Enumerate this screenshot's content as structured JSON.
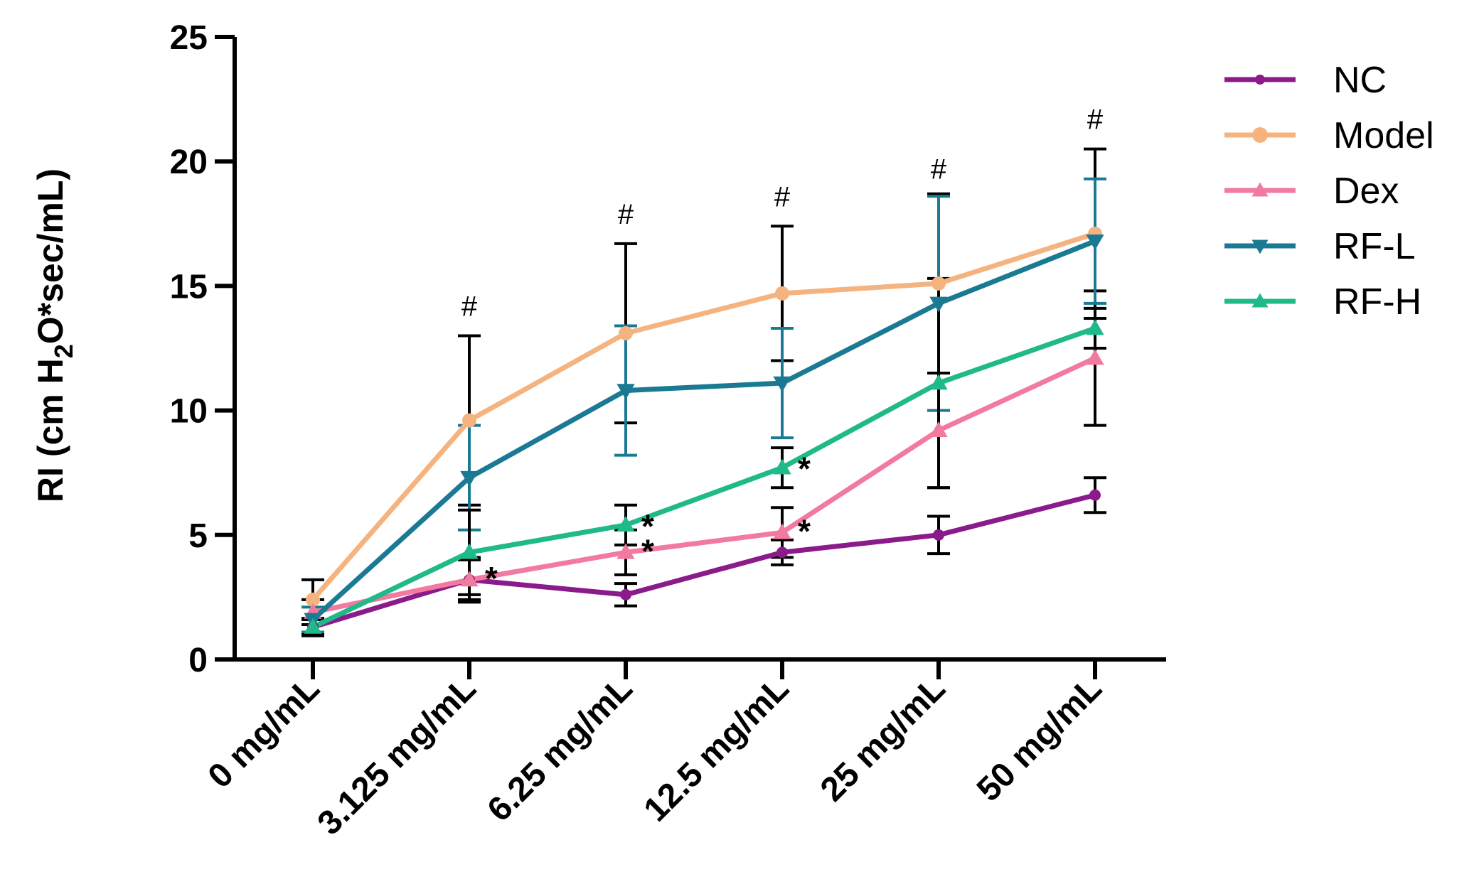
{
  "chart_data": {
    "type": "line",
    "title": "",
    "xlabel": "",
    "ylabel": {
      "prefix": "RI (cm H",
      "sub": "2",
      "suffix": "O*sec/mL)"
    },
    "ylim": [
      0,
      25
    ],
    "yticks": [
      0,
      5,
      10,
      15,
      20,
      25
    ],
    "categories": [
      "0 mg/mL",
      "3.125 mg/mL",
      "6.25 mg/mL",
      "12.5 mg/mL",
      "25 mg/mL",
      "50 mg/mL"
    ],
    "legend_position": "top-right",
    "series": [
      {
        "name": "NC",
        "color": "#8B1A8B",
        "marker": "circle",
        "values": [
          1.3,
          3.2,
          2.6,
          4.3,
          5.0,
          6.6
        ],
        "errors": [
          0.35,
          0.8,
          0.45,
          0.5,
          0.75,
          0.7
        ]
      },
      {
        "name": "Model",
        "color": "#F5B37F",
        "marker": "circle",
        "values": [
          2.4,
          9.6,
          13.1,
          14.7,
          15.1,
          17.1
        ],
        "errors": [
          0.8,
          3.4,
          3.6,
          2.7,
          3.6,
          3.4
        ]
      },
      {
        "name": "Dex",
        "color": "#F27A9F",
        "marker": "triangle-up",
        "values": [
          1.9,
          3.2,
          4.3,
          5.1,
          9.2,
          12.1
        ],
        "errors": [
          0.5,
          0.9,
          0.9,
          1.0,
          2.3,
          2.7
        ]
      },
      {
        "name": "RF-L",
        "color": "#1B7A93",
        "marker": "triangle-down",
        "values": [
          1.6,
          7.3,
          10.8,
          11.1,
          14.3,
          16.8
        ],
        "errors": [
          0.5,
          2.1,
          2.6,
          2.2,
          4.3,
          2.5
        ]
      },
      {
        "name": "RF-H",
        "color": "#1FB98A",
        "marker": "triangle-up",
        "values": [
          1.3,
          4.3,
          5.4,
          7.7,
          11.1,
          13.3
        ],
        "errors": [
          0.3,
          1.7,
          0.8,
          0.8,
          4.2,
          0.8
        ]
      }
    ],
    "annotations": [
      {
        "text": "#",
        "category_index": 1,
        "y": 13.8
      },
      {
        "text": "#",
        "category_index": 2,
        "y": 17.5
      },
      {
        "text": "#",
        "category_index": 3,
        "y": 18.2
      },
      {
        "text": "#",
        "category_index": 4,
        "y": 19.3
      },
      {
        "text": "#",
        "category_index": 5,
        "y": 21.3
      },
      {
        "text": "*",
        "category_index": 1,
        "y": 3.6
      },
      {
        "text": "*",
        "category_index": 2,
        "y": 5.7
      },
      {
        "text": "*",
        "category_index": 2,
        "y": 4.7
      },
      {
        "text": "*",
        "category_index": 3,
        "y": 8.0
      },
      {
        "text": "*",
        "category_index": 3,
        "y": 5.5
      }
    ]
  }
}
